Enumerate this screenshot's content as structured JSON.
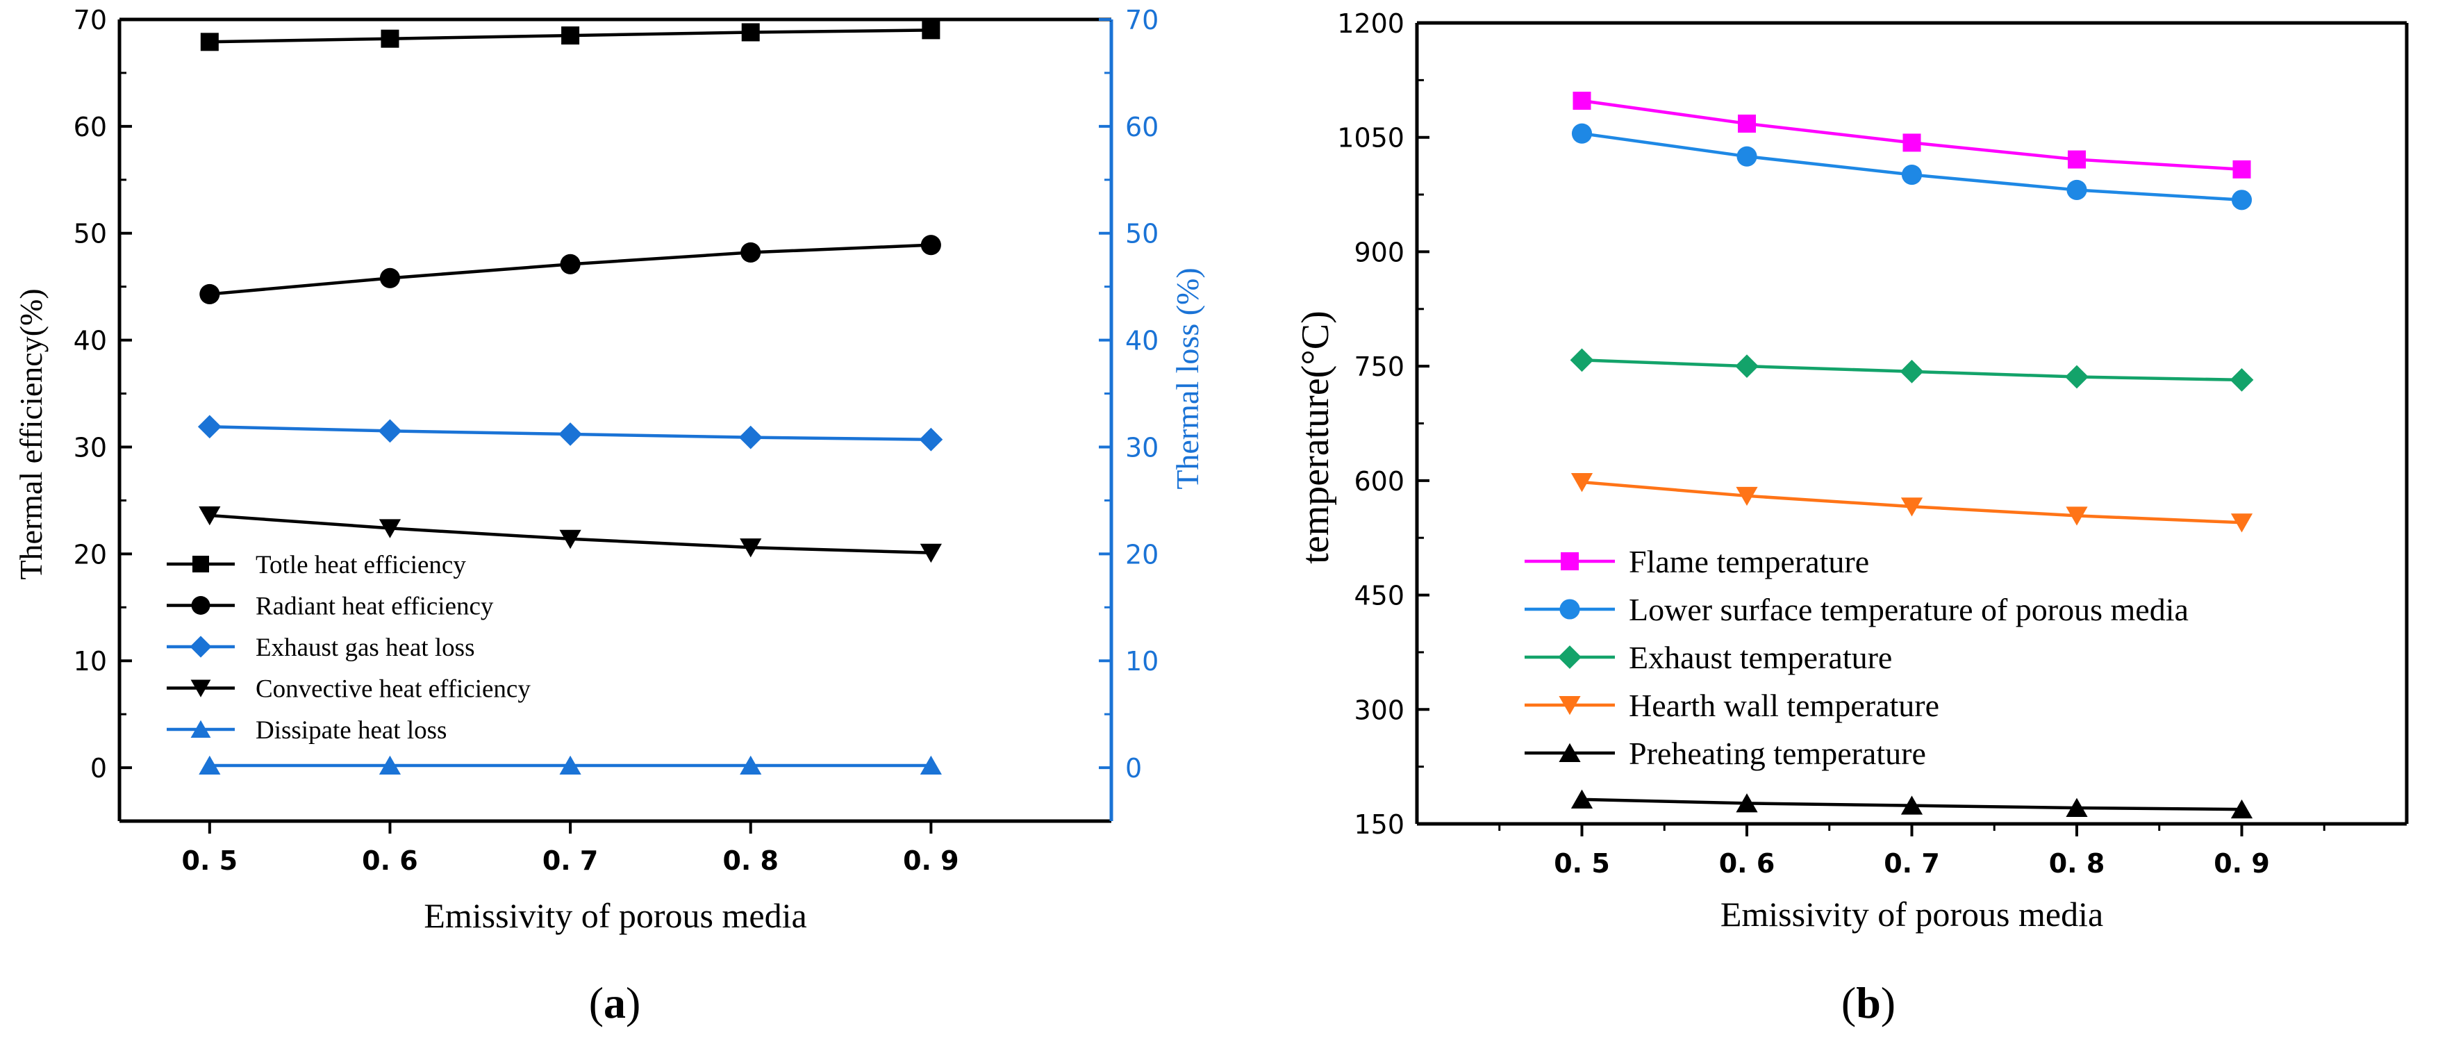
{
  "chart_data": [
    {
      "id": "a",
      "type": "line",
      "panel_label": "(a)",
      "panel_letter": "a",
      "xlabel": "Emissivity of porous media",
      "ylabel": "Thermal efficiency(%)",
      "ylabel_right": "Thermal loss (%)",
      "x": [
        0.5,
        0.6,
        0.7,
        0.8,
        0.9
      ],
      "x_tick_labels": [
        "0. 5",
        "0. 6",
        "0. 7",
        "0. 8",
        "0. 9"
      ],
      "xlim": [
        0.45,
        1.0
      ],
      "ylim": [
        -5,
        70
      ],
      "y_ticks": [
        0,
        10,
        20,
        30,
        40,
        50,
        60,
        70
      ],
      "ylim_right": [
        -5,
        70
      ],
      "y_ticks_right": [
        0,
        10,
        20,
        30,
        40,
        50,
        60,
        70
      ],
      "right_axis_color": "#1a73d6",
      "legend_position": "lower-left",
      "grid": false,
      "series": [
        {
          "name": "Totle heat efficiency",
          "marker": "square",
          "color": "#000000",
          "values": [
            67.9,
            68.2,
            68.5,
            68.8,
            69.0
          ]
        },
        {
          "name": "Radiant heat efficiency",
          "marker": "circle",
          "color": "#000000",
          "values": [
            44.3,
            45.8,
            47.1,
            48.2,
            48.9
          ]
        },
        {
          "name": "Exhaust gas heat loss",
          "marker": "diamond",
          "color": "#1a73d6",
          "values": [
            31.9,
            31.5,
            31.2,
            30.9,
            30.7
          ]
        },
        {
          "name": "Convective heat efficiency",
          "marker": "triangle-down",
          "color": "#000000",
          "values": [
            23.6,
            22.4,
            21.4,
            20.6,
            20.1
          ]
        },
        {
          "name": "Dissipate heat loss",
          "marker": "triangle-up",
          "color": "#1a73d6",
          "values": [
            0.2,
            0.2,
            0.2,
            0.2,
            0.2
          ]
        }
      ]
    },
    {
      "id": "b",
      "type": "line",
      "panel_label": "(b)",
      "panel_letter": "b",
      "xlabel": "Emissivity of porous media",
      "ylabel": "temperature(°C)",
      "x": [
        0.5,
        0.6,
        0.7,
        0.8,
        0.9
      ],
      "x_tick_labels": [
        "0. 5",
        "0. 6",
        "0. 7",
        "0. 8",
        "0. 9"
      ],
      "xlim": [
        0.4,
        1.0
      ],
      "ylim": [
        150,
        1200
      ],
      "y_ticks": [
        150,
        300,
        450,
        600,
        750,
        900,
        1050,
        1200
      ],
      "legend_position": "lower-left",
      "grid": false,
      "series": [
        {
          "name": "Flame temperature",
          "marker": "square",
          "color": "#ff00ff",
          "values": [
            1098,
            1068,
            1043,
            1021,
            1008
          ]
        },
        {
          "name": "Lower surface temperature of porous media",
          "marker": "circle",
          "color": "#1e88e5",
          "values": [
            1055,
            1025,
            1001,
            981,
            968
          ]
        },
        {
          "name": "Exhaust temperature",
          "marker": "diamond",
          "color": "#13a36a",
          "values": [
            758,
            750,
            743,
            736,
            732
          ]
        },
        {
          "name": "Hearth wall temperature",
          "marker": "triangle-down",
          "color": "#ff7417",
          "values": [
            598,
            580,
            566,
            554,
            545
          ]
        },
        {
          "name": "Preheating temperature",
          "marker": "triangle-up",
          "color": "#000000",
          "values": [
            182,
            177,
            174,
            171,
            169
          ]
        }
      ]
    }
  ]
}
